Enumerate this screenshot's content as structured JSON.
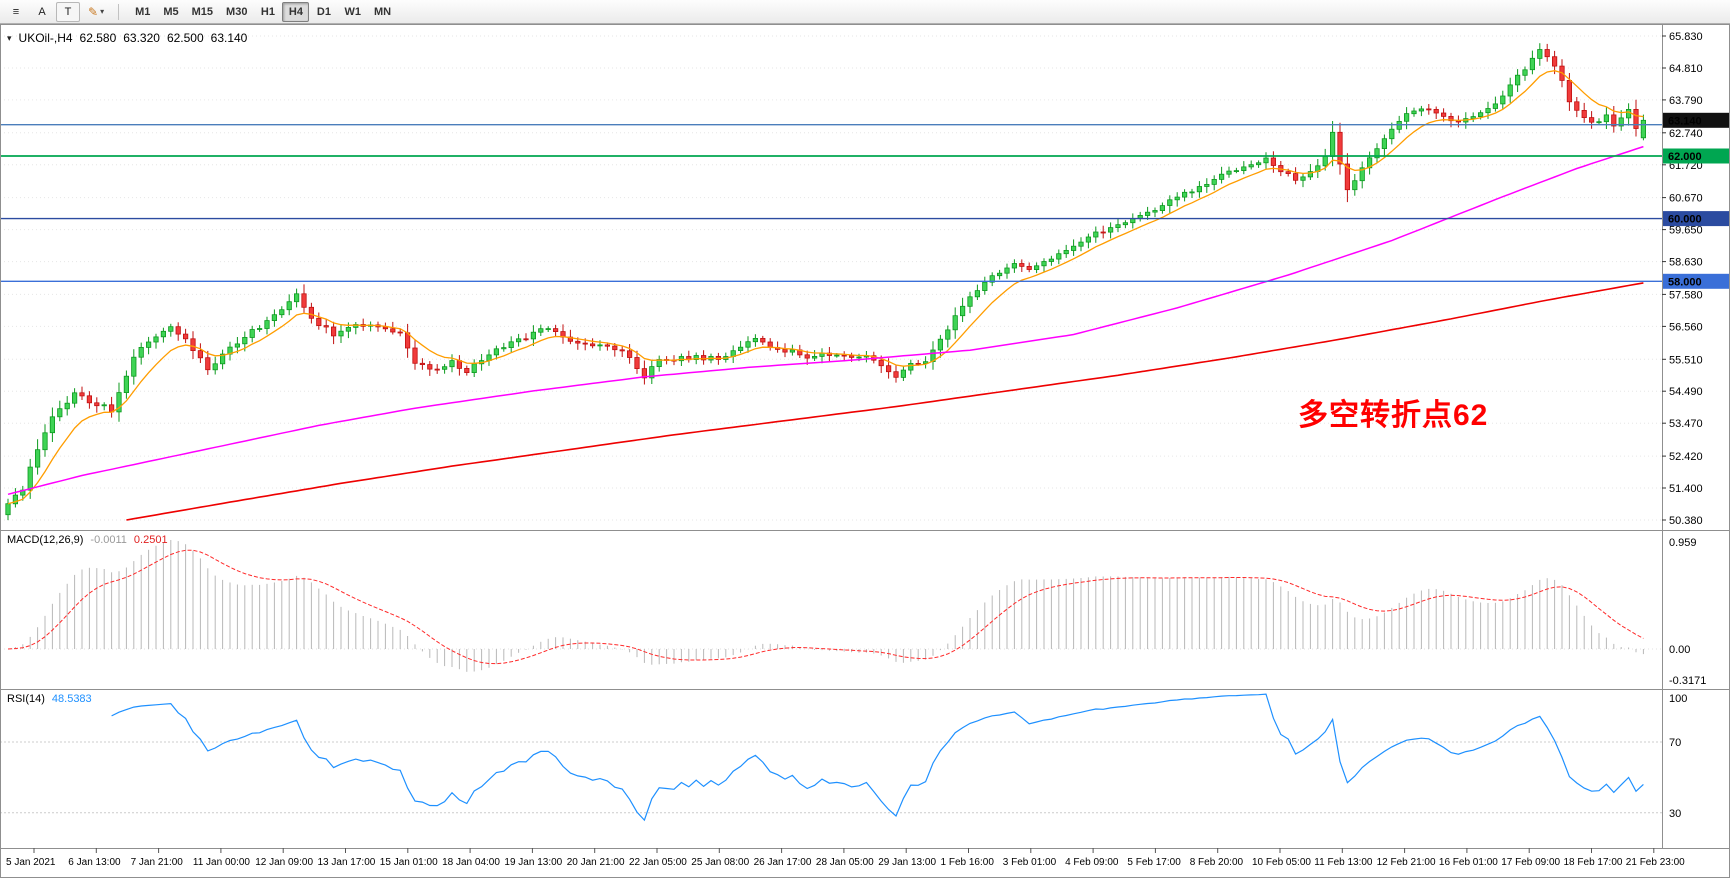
{
  "toolbar": {
    "icons": {
      "menu": "≡",
      "pencil": "✎",
      "dropdown": "▾"
    },
    "tool_buttons": [
      {
        "label": "A"
      },
      {
        "label": "T"
      }
    ],
    "timeframes": [
      "M1",
      "M5",
      "M15",
      "M30",
      "H1",
      "H4",
      "D1",
      "W1",
      "MN"
    ],
    "active_timeframe": "H4"
  },
  "chart": {
    "header": {
      "marker": "▾",
      "symbol_period": "UKOil-,H4",
      "open": "62.580",
      "high": "63.320",
      "low": "62.500",
      "close": "63.140"
    },
    "annotation": {
      "text": "多空转折点62",
      "color": "#ff0000"
    },
    "price_axis": {
      "ticks": [
        "65.830",
        "64.810",
        "63.790",
        "62.740",
        "61.720",
        "60.670",
        "59.650",
        "58.630",
        "57.580",
        "56.560",
        "55.510",
        "54.490",
        "53.470",
        "52.420",
        "51.400",
        "50.380"
      ]
    },
    "current_price": {
      "value": "63.140",
      "badge_color": "#111111"
    },
    "hlines": [
      {
        "price": 63.0,
        "color": "#4a7ebb",
        "badge": null
      },
      {
        "price": 62.0,
        "color": "#00a651",
        "badge": "62.000"
      },
      {
        "price": 60.0,
        "color": "#2b4ba0",
        "badge": "60.000"
      },
      {
        "price": 58.0,
        "color": "#3a6fd8",
        "badge": "58.000"
      }
    ]
  },
  "macd": {
    "label": "MACD(12,26,9)",
    "value_main": "-0.0011",
    "value_signal": "0.2501",
    "axis": [
      "0.959",
      "0.00",
      "-0.3171"
    ]
  },
  "rsi": {
    "label": "RSI(14)",
    "value": "48.5383",
    "levels": [
      70,
      30
    ],
    "axis": [
      "100",
      "70",
      "30"
    ]
  },
  "time_axis": {
    "labels": [
      "5 Jan 2021",
      "6 Jan 13:00",
      "7 Jan 21:00",
      "11 Jan 00:00",
      "12 Jan 09:00",
      "13 Jan 17:00",
      "15 Jan 01:00",
      "18 Jan 04:00",
      "19 Jan 13:00",
      "20 Jan 21:00",
      "22 Jan 05:00",
      "25 Jan 08:00",
      "26 Jan 17:00",
      "28 Jan 05:00",
      "29 Jan 13:00",
      "1 Feb 16:00",
      "3 Feb 01:00",
      "4 Feb 09:00",
      "5 Feb 17:00",
      "8 Feb 20:00",
      "10 Feb 05:00",
      "11 Feb 13:00",
      "12 Feb 21:00",
      "16 Feb 01:00",
      "17 Feb 09:00",
      "18 Feb 17:00",
      "21 Feb 23:00"
    ]
  },
  "chart_data": {
    "type": "candlestick",
    "symbol": "UKOil-",
    "timeframe": "H4",
    "title": "UKOil-,H4",
    "price_range": [
      50.38,
      65.83
    ],
    "candle_count": 222,
    "last_ohlc": {
      "open": 62.58,
      "high": 63.32,
      "low": 62.5,
      "close": 63.14
    },
    "close_path": [
      [
        0,
        50.9
      ],
      [
        2,
        51.4
      ],
      [
        4,
        52.6
      ],
      [
        6,
        53.6
      ],
      [
        9,
        54.4
      ],
      [
        12,
        54.1
      ],
      [
        14,
        53.9
      ],
      [
        17,
        55.6
      ],
      [
        20,
        56.3
      ],
      [
        22,
        56.6
      ],
      [
        24,
        56.1
      ],
      [
        27,
        55.2
      ],
      [
        30,
        55.9
      ],
      [
        33,
        56.4
      ],
      [
        36,
        56.9
      ],
      [
        38,
        57.4
      ],
      [
        39,
        57.6
      ],
      [
        41,
        56.8
      ],
      [
        44,
        56.3
      ],
      [
        47,
        56.6
      ],
      [
        50,
        56.5
      ],
      [
        53,
        56.3
      ],
      [
        55,
        55.4
      ],
      [
        58,
        55.15
      ],
      [
        60,
        55.45
      ],
      [
        62,
        55.1
      ],
      [
        64,
        55.5
      ],
      [
        66,
        55.8
      ],
      [
        69,
        56.1
      ],
      [
        71,
        56.35
      ],
      [
        73,
        56.55
      ],
      [
        75,
        56.2
      ],
      [
        78,
        56.05
      ],
      [
        81,
        55.95
      ],
      [
        84,
        55.6
      ],
      [
        86,
        54.95
      ],
      [
        88,
        55.45
      ],
      [
        90,
        55.5
      ],
      [
        93,
        55.6
      ],
      [
        96,
        55.5
      ],
      [
        99,
        55.95
      ],
      [
        101,
        56.25
      ],
      [
        103,
        55.95
      ],
      [
        105,
        55.8
      ],
      [
        108,
        55.6
      ],
      [
        110,
        55.75
      ],
      [
        112,
        55.6
      ],
      [
        114,
        55.5
      ],
      [
        116,
        55.6
      ],
      [
        118,
        55.3
      ],
      [
        120,
        54.95
      ],
      [
        122,
        55.3
      ],
      [
        124,
        55.5
      ],
      [
        126,
        56.1
      ],
      [
        128,
        56.9
      ],
      [
        130,
        57.5
      ],
      [
        132,
        58.0
      ],
      [
        134,
        58.3
      ],
      [
        136,
        58.55
      ],
      [
        138,
        58.3
      ],
      [
        140,
        58.65
      ],
      [
        142,
        58.9
      ],
      [
        144,
        59.15
      ],
      [
        146,
        59.4
      ],
      [
        148,
        59.6
      ],
      [
        150,
        59.85
      ],
      [
        152,
        60.0
      ],
      [
        155,
        60.3
      ],
      [
        157,
        60.55
      ],
      [
        159,
        60.8
      ],
      [
        161,
        60.95
      ],
      [
        163,
        61.25
      ],
      [
        165,
        61.5
      ],
      [
        168,
        61.8
      ],
      [
        170,
        61.9
      ],
      [
        172,
        61.5
      ],
      [
        174,
        61.25
      ],
      [
        176,
        61.5
      ],
      [
        178,
        61.9
      ],
      [
        179,
        62.7
      ],
      [
        181,
        60.9
      ],
      [
        183,
        61.6
      ],
      [
        185,
        62.3
      ],
      [
        187,
        62.9
      ],
      [
        189,
        63.3
      ],
      [
        191,
        63.5
      ],
      [
        193,
        63.45
      ],
      [
        196,
        63.05
      ],
      [
        198,
        63.3
      ],
      [
        200,
        63.55
      ],
      [
        202,
        63.9
      ],
      [
        204,
        64.5
      ],
      [
        206,
        65.1
      ],
      [
        207,
        65.45
      ],
      [
        208,
        65.2
      ],
      [
        209,
        64.9
      ],
      [
        210,
        64.35
      ],
      [
        211,
        63.7
      ],
      [
        213,
        63.25
      ],
      [
        215,
        63.05
      ],
      [
        216,
        63.35
      ],
      [
        217,
        62.95
      ],
      [
        218,
        63.15
      ],
      [
        219,
        63.45
      ],
      [
        220,
        62.9
      ],
      [
        221,
        63.14
      ]
    ],
    "ma_fast_period": 8,
    "ma_fast_color": "#ff9d00",
    "ma_mid_color": "#ff00ff",
    "ma_slow_color": "#ee0000",
    "ma_mid_path": [
      [
        0,
        51.2
      ],
      [
        10,
        51.8
      ],
      [
        20,
        52.3
      ],
      [
        30,
        52.8
      ],
      [
        42,
        53.4
      ],
      [
        55,
        53.95
      ],
      [
        71,
        54.5
      ],
      [
        86,
        54.95
      ],
      [
        100,
        55.25
      ],
      [
        115,
        55.5
      ],
      [
        130,
        55.8
      ],
      [
        144,
        56.3
      ],
      [
        158,
        57.15
      ],
      [
        173,
        58.2
      ],
      [
        187,
        59.3
      ],
      [
        202,
        60.7
      ],
      [
        212,
        61.6
      ],
      [
        221,
        62.3
      ]
    ],
    "ma_slow_path": [
      [
        16,
        50.38
      ],
      [
        30,
        50.95
      ],
      [
        45,
        51.55
      ],
      [
        60,
        52.1
      ],
      [
        75,
        52.6
      ],
      [
        90,
        53.1
      ],
      [
        105,
        53.55
      ],
      [
        120,
        54.0
      ],
      [
        135,
        54.5
      ],
      [
        150,
        55.0
      ],
      [
        165,
        55.55
      ],
      [
        180,
        56.15
      ],
      [
        195,
        56.8
      ],
      [
        208,
        57.4
      ],
      [
        221,
        57.95
      ]
    ],
    "up_color": "#3fd355",
    "down_color": "#f03b3b",
    "macd_params": [
      12,
      26,
      9
    ],
    "rsi_period": 14,
    "hline_levels": [
      63.0,
      62.0,
      60.0,
      58.0
    ]
  }
}
